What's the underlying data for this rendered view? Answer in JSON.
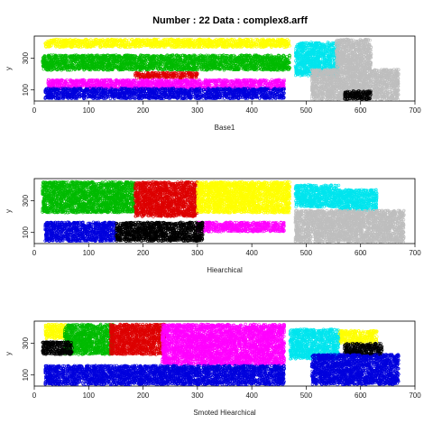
{
  "title": "Number : 22    Data : complex8.arff",
  "colors": {
    "yellow": "#ffff00",
    "green": "#00bb00",
    "red": "#dd0000",
    "magenta": "#ff00ff",
    "blue": "#0000dd",
    "black": "#000000",
    "cyan": "#00e5ee",
    "gray": "#bebebe"
  },
  "chart_data": [
    {
      "type": "scatter",
      "title": "",
      "xlabel": "Base1",
      "ylabel": "y",
      "xlim": [
        0,
        700
      ],
      "ylim": [
        30,
        440
      ],
      "xticks": [
        0,
        100,
        200,
        300,
        400,
        500,
        600,
        700
      ],
      "yticks": [
        100,
        300
      ],
      "grid": false,
      "series": [
        {
          "color": "yellow",
          "regions": [
            [
              20,
              470,
              370,
              420
            ]
          ]
        },
        {
          "color": "green",
          "regions": [
            [
              15,
              470,
              225,
              320
            ]
          ]
        },
        {
          "color": "red",
          "regions": [
            [
              185,
              300,
              175,
              210
            ]
          ]
        },
        {
          "color": "magenta",
          "regions": [
            [
              25,
              460,
              105,
              165
            ]
          ]
        },
        {
          "color": "blue",
          "regions": [
            [
              20,
              460,
              45,
              110
            ]
          ]
        },
        {
          "color": "cyan",
          "regions": [
            [
              480,
              560,
              190,
              400
            ]
          ]
        },
        {
          "color": "gray",
          "regions": [
            [
              555,
              620,
              230,
              420
            ],
            [
              510,
              670,
              40,
              230
            ]
          ]
        },
        {
          "color": "black",
          "regions": [
            [
              570,
              620,
              40,
              95
            ]
          ]
        }
      ]
    },
    {
      "type": "scatter",
      "title": "",
      "xlabel": "Hiearchical",
      "ylabel": "y",
      "xlim": [
        0,
        700
      ],
      "ylim": [
        30,
        440
      ],
      "xticks": [
        0,
        100,
        200,
        300,
        400,
        500,
        600,
        700
      ],
      "yticks": [
        100,
        300
      ],
      "grid": false,
      "series": [
        {
          "color": "green",
          "regions": [
            [
              15,
              185,
              225,
              420
            ]
          ]
        },
        {
          "color": "red",
          "regions": [
            [
              185,
              300,
              200,
              420
            ]
          ]
        },
        {
          "color": "yellow",
          "regions": [
            [
              300,
              470,
              225,
              420
            ]
          ]
        },
        {
          "color": "magenta",
          "regions": [
            [
              300,
              460,
              105,
              165
            ]
          ]
        },
        {
          "color": "blue",
          "regions": [
            [
              20,
              150,
              45,
              165
            ]
          ]
        },
        {
          "color": "black",
          "regions": [
            [
              150,
              310,
              45,
              165
            ]
          ]
        },
        {
          "color": "cyan",
          "regions": [
            [
              480,
              560,
              260,
              400
            ],
            [
              560,
              630,
              240,
              370
            ]
          ]
        },
        {
          "color": "gray",
          "regions": [
            [
              480,
              680,
              40,
              240
            ]
          ]
        }
      ]
    },
    {
      "type": "scatter",
      "title": "",
      "xlabel": "Smoted Hiearchical",
      "ylabel": "y",
      "xlim": [
        0,
        700
      ],
      "ylim": [
        30,
        440
      ],
      "xticks": [
        0,
        100,
        200,
        300,
        400,
        500,
        600,
        700
      ],
      "yticks": [
        100,
        300
      ],
      "grid": false,
      "series": [
        {
          "color": "yellow",
          "regions": [
            [
              20,
              60,
              330,
              420
            ],
            [
              560,
              630,
              300,
              380
            ]
          ]
        },
        {
          "color": "green",
          "regions": [
            [
              55,
              145,
              230,
              420
            ]
          ]
        },
        {
          "color": "black",
          "regions": [
            [
              15,
              70,
              230,
              310
            ],
            [
              570,
              640,
              220,
              300
            ]
          ]
        },
        {
          "color": "red",
          "regions": [
            [
              140,
              240,
              230,
              420
            ]
          ]
        },
        {
          "color": "magenta",
          "regions": [
            [
              235,
              460,
              165,
              420
            ]
          ]
        },
        {
          "color": "cyan",
          "regions": [
            [
              470,
              560,
              200,
              390
            ]
          ]
        },
        {
          "color": "blue",
          "regions": [
            [
              20,
              460,
              40,
              160
            ],
            [
              510,
              670,
              40,
              230
            ]
          ]
        }
      ]
    }
  ]
}
